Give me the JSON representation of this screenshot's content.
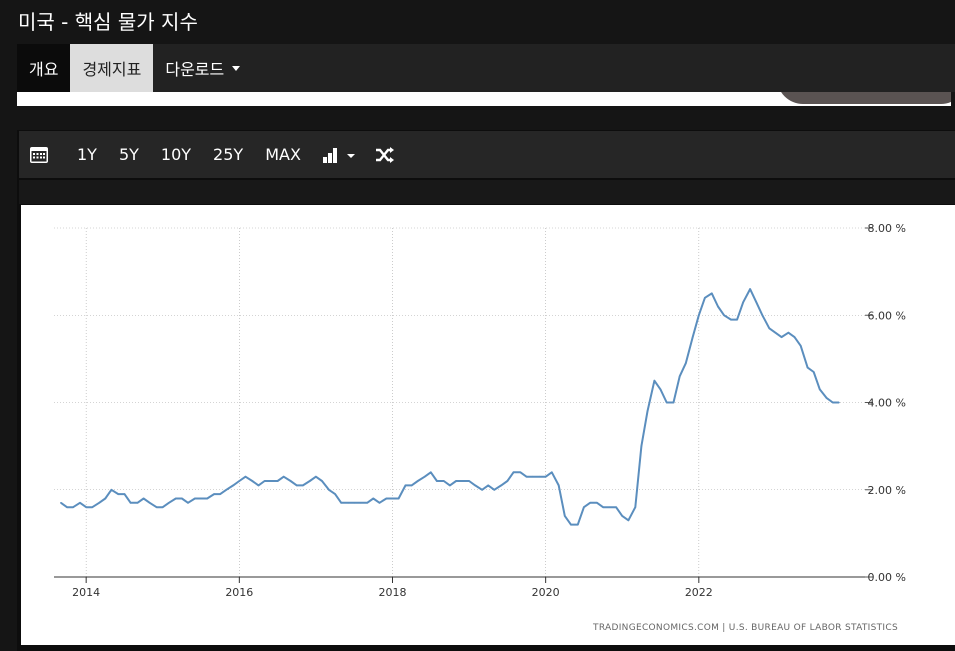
{
  "page": {
    "title": "미국 - 핵심 물가 지수"
  },
  "nav": {
    "items": [
      {
        "label": "개요"
      },
      {
        "label": "경제지표"
      },
      {
        "label": "다운로드"
      }
    ]
  },
  "toolbar": {
    "ranges": [
      "1Y",
      "5Y",
      "10Y",
      "25Y",
      "MAX"
    ],
    "icons": [
      "calendar-icon",
      "chart-type-icon",
      "shuffle-icon"
    ]
  },
  "colors": {
    "line": "#5b8ebe",
    "background": "#151515"
  },
  "chart_data": {
    "type": "line",
    "x_ticks": [
      "2014",
      "2016",
      "2018",
      "2020",
      "2022"
    ],
    "y_ticks": [
      "8.00 %",
      "6.00 %",
      "4.00 %",
      "2.00 %",
      "0.00 %"
    ],
    "ylim": [
      0,
      8
    ],
    "xlim": [
      2013.58,
      2024.17
    ],
    "grid": true,
    "source": "TRADINGECONOMICS.COM  |  U.S. BUREAU OF LABOR STATISTICS",
    "series": [
      {
        "points": [
          [
            2013.67,
            1.7
          ],
          [
            2013.75,
            1.6
          ],
          [
            2013.83,
            1.6
          ],
          [
            2013.92,
            1.7
          ],
          [
            2014.0,
            1.6
          ],
          [
            2014.08,
            1.6
          ],
          [
            2014.17,
            1.7
          ],
          [
            2014.25,
            1.8
          ],
          [
            2014.33,
            2.0
          ],
          [
            2014.42,
            1.9
          ],
          [
            2014.5,
            1.9
          ],
          [
            2014.58,
            1.7
          ],
          [
            2014.67,
            1.7
          ],
          [
            2014.75,
            1.8
          ],
          [
            2014.83,
            1.7
          ],
          [
            2014.92,
            1.6
          ],
          [
            2015.0,
            1.6
          ],
          [
            2015.08,
            1.7
          ],
          [
            2015.17,
            1.8
          ],
          [
            2015.25,
            1.8
          ],
          [
            2015.33,
            1.7
          ],
          [
            2015.42,
            1.8
          ],
          [
            2015.5,
            1.8
          ],
          [
            2015.58,
            1.8
          ],
          [
            2015.67,
            1.9
          ],
          [
            2015.75,
            1.9
          ],
          [
            2015.83,
            2.0
          ],
          [
            2015.92,
            2.1
          ],
          [
            2016.0,
            2.2
          ],
          [
            2016.08,
            2.3
          ],
          [
            2016.17,
            2.2
          ],
          [
            2016.25,
            2.1
          ],
          [
            2016.33,
            2.2
          ],
          [
            2016.42,
            2.2
          ],
          [
            2016.5,
            2.2
          ],
          [
            2016.58,
            2.3
          ],
          [
            2016.67,
            2.2
          ],
          [
            2016.75,
            2.1
          ],
          [
            2016.83,
            2.1
          ],
          [
            2016.92,
            2.2
          ],
          [
            2017.0,
            2.3
          ],
          [
            2017.08,
            2.2
          ],
          [
            2017.17,
            2.0
          ],
          [
            2017.25,
            1.9
          ],
          [
            2017.33,
            1.7
          ],
          [
            2017.42,
            1.7
          ],
          [
            2017.5,
            1.7
          ],
          [
            2017.58,
            1.7
          ],
          [
            2017.67,
            1.7
          ],
          [
            2017.75,
            1.8
          ],
          [
            2017.83,
            1.7
          ],
          [
            2017.92,
            1.8
          ],
          [
            2018.0,
            1.8
          ],
          [
            2018.08,
            1.8
          ],
          [
            2018.17,
            2.1
          ],
          [
            2018.25,
            2.1
          ],
          [
            2018.33,
            2.2
          ],
          [
            2018.42,
            2.3
          ],
          [
            2018.5,
            2.4
          ],
          [
            2018.58,
            2.2
          ],
          [
            2018.67,
            2.2
          ],
          [
            2018.75,
            2.1
          ],
          [
            2018.83,
            2.2
          ],
          [
            2018.92,
            2.2
          ],
          [
            2019.0,
            2.2
          ],
          [
            2019.08,
            2.1
          ],
          [
            2019.17,
            2.0
          ],
          [
            2019.25,
            2.1
          ],
          [
            2019.33,
            2.0
          ],
          [
            2019.42,
            2.1
          ],
          [
            2019.5,
            2.2
          ],
          [
            2019.58,
            2.4
          ],
          [
            2019.67,
            2.4
          ],
          [
            2019.75,
            2.3
          ],
          [
            2019.83,
            2.3
          ],
          [
            2019.92,
            2.3
          ],
          [
            2020.0,
            2.3
          ],
          [
            2020.08,
            2.4
          ],
          [
            2020.17,
            2.1
          ],
          [
            2020.25,
            1.4
          ],
          [
            2020.33,
            1.2
          ],
          [
            2020.42,
            1.2
          ],
          [
            2020.5,
            1.6
          ],
          [
            2020.58,
            1.7
          ],
          [
            2020.67,
            1.7
          ],
          [
            2020.75,
            1.6
          ],
          [
            2020.83,
            1.6
          ],
          [
            2020.92,
            1.6
          ],
          [
            2021.0,
            1.4
          ],
          [
            2021.08,
            1.3
          ],
          [
            2021.17,
            1.6
          ],
          [
            2021.25,
            3.0
          ],
          [
            2021.33,
            3.8
          ],
          [
            2021.42,
            4.5
          ],
          [
            2021.5,
            4.3
          ],
          [
            2021.58,
            4.0
          ],
          [
            2021.67,
            4.0
          ],
          [
            2021.75,
            4.6
          ],
          [
            2021.83,
            4.9
          ],
          [
            2021.92,
            5.5
          ],
          [
            2022.0,
            6.0
          ],
          [
            2022.08,
            6.4
          ],
          [
            2022.17,
            6.5
          ],
          [
            2022.25,
            6.2
          ],
          [
            2022.33,
            6.0
          ],
          [
            2022.42,
            5.9
          ],
          [
            2022.5,
            5.9
          ],
          [
            2022.58,
            6.3
          ],
          [
            2022.67,
            6.6
          ],
          [
            2022.75,
            6.3
          ],
          [
            2022.83,
            6.0
          ],
          [
            2022.92,
            5.7
          ],
          [
            2023.0,
            5.6
          ],
          [
            2023.08,
            5.5
          ],
          [
            2023.17,
            5.6
          ],
          [
            2023.25,
            5.5
          ],
          [
            2023.33,
            5.3
          ],
          [
            2023.42,
            4.8
          ],
          [
            2023.5,
            4.7
          ],
          [
            2023.58,
            4.3
          ],
          [
            2023.67,
            4.1
          ],
          [
            2023.75,
            4.0
          ],
          [
            2023.83,
            4.0
          ]
        ]
      }
    ]
  }
}
